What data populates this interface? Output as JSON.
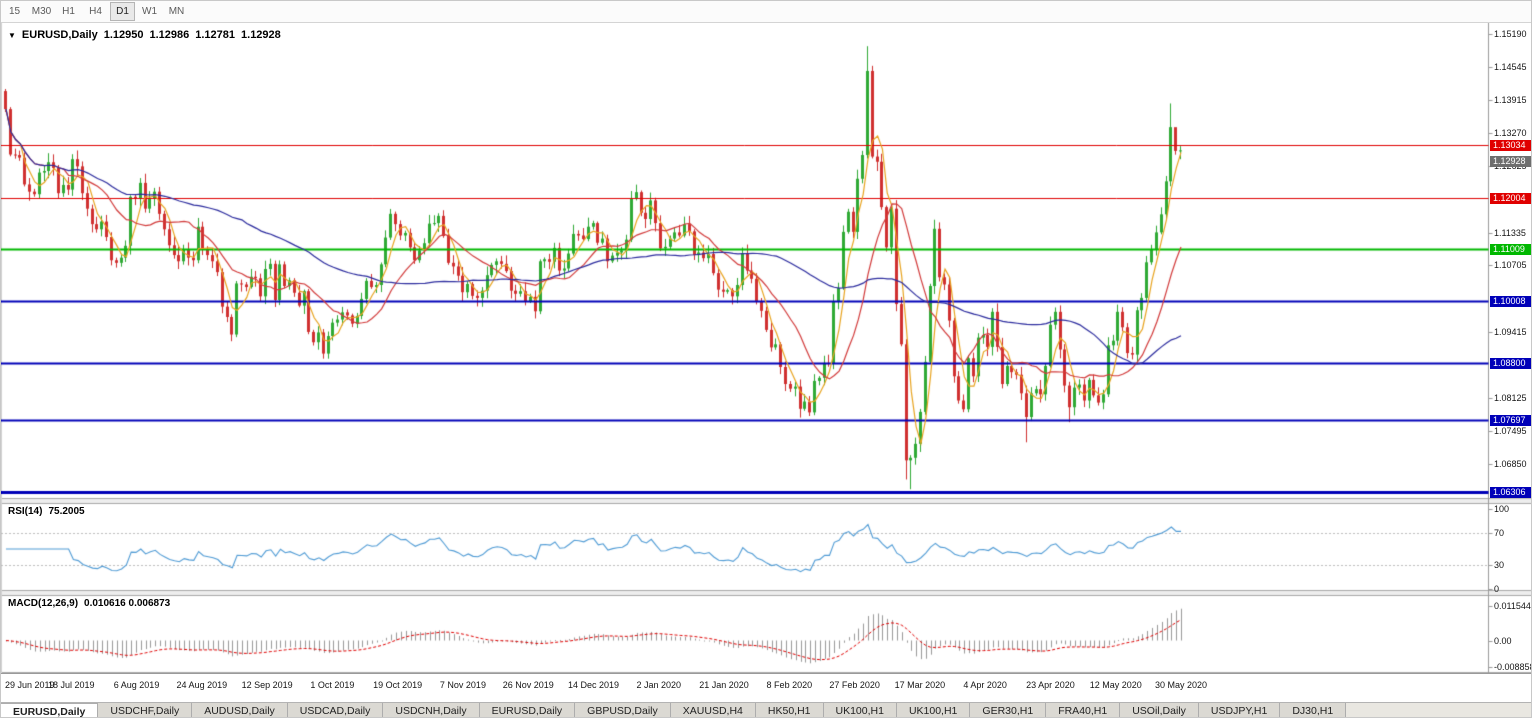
{
  "toolbar": {
    "timeframes": [
      {
        "label": "15",
        "active": false
      },
      {
        "label": "M30",
        "active": false
      },
      {
        "label": "H1",
        "active": false
      },
      {
        "label": "H4",
        "active": false
      },
      {
        "label": "D1",
        "active": true
      },
      {
        "label": "W1",
        "active": false
      },
      {
        "label": "MN",
        "active": false
      }
    ]
  },
  "icons": {
    "dropdown": "▼"
  },
  "chart": {
    "symbol_title": "EURUSD,Daily",
    "quote": {
      "open": "1.12950",
      "high": "1.12986",
      "low": "1.12781",
      "close": "1.12928"
    }
  },
  "chart_data": {
    "type": "candlestick",
    "symbol": "EURUSD",
    "period": "Daily",
    "price_range": {
      "max": 1.154,
      "min": 1.0619
    },
    "first_open": 1.1408,
    "closes": [
      1.1373,
      1.1285,
      1.1284,
      1.1279,
      1.1227,
      1.1213,
      1.1208,
      1.125,
      1.1253,
      1.127,
      1.1259,
      1.121,
      1.1226,
      1.1217,
      1.1276,
      1.1262,
      1.121,
      1.118,
      1.115,
      1.114,
      1.1155,
      1.1125,
      1.108,
      1.1075,
      1.1085,
      1.1108,
      1.1203,
      1.12,
      1.123,
      1.118,
      1.12,
      1.1213,
      1.117,
      1.114,
      1.1109,
      1.109,
      1.1078,
      1.11,
      1.1085,
      1.108,
      1.1145,
      1.1101,
      1.109,
      1.1078,
      1.1057,
      1.099,
      1.097,
      1.0936,
      1.1035,
      1.1033,
      1.1028,
      1.1048,
      1.1045,
      1.101,
      1.1063,
      1.1073,
      1.1003,
      1.1072,
      1.103,
      1.1041,
      1.1017,
      1.0992,
      1.102,
      1.0941,
      1.0921,
      1.094,
      1.0899,
      1.0933,
      1.0959,
      1.0965,
      1.0979,
      1.0973,
      1.0957,
      1.0972,
      1.1005,
      1.104,
      1.1028,
      1.1032,
      1.1072,
      1.1124,
      1.117,
      1.115,
      1.1128,
      1.1133,
      1.1105,
      1.108,
      1.1099,
      1.1113,
      1.1151,
      1.1152,
      1.1166,
      1.1127,
      1.1075,
      1.1068,
      1.105,
      1.1018,
      1.1034,
      1.1011,
      1.1007,
      1.1021,
      1.1051,
      1.1071,
      1.1078,
      1.1073,
      1.1059,
      1.1021,
      1.1015,
      1.102,
      1.1001,
      1.1009,
      1.0981,
      1.1078,
      1.1082,
      1.1077,
      1.1104,
      1.106,
      1.1064,
      1.1093,
      1.1131,
      1.1128,
      1.1121,
      1.1145,
      1.1152,
      1.1114,
      1.1122,
      1.1078,
      1.1089,
      1.1095,
      1.1099,
      1.112,
      1.1199,
      1.1212,
      1.1172,
      1.116,
      1.1196,
      1.1152,
      1.1103,
      1.1106,
      1.1122,
      1.1134,
      1.1128,
      1.115,
      1.1136,
      1.109,
      1.1095,
      1.1084,
      1.1092,
      1.1055,
      1.1023,
      1.1019,
      1.1022,
      1.101,
      1.1032,
      1.1094,
      1.106,
      1.1044,
      1.1,
      1.0982,
      1.0945,
      1.0911,
      1.0917,
      1.0873,
      1.084,
      1.0831,
      1.0835,
      1.0792,
      1.0806,
      1.0785,
      1.0846,
      1.0852,
      1.0881,
      1.088,
      1.0999,
      1.1026,
      1.1135,
      1.1174,
      1.1135,
      1.1238,
      1.1284,
      1.1447,
      1.1281,
      1.1271,
      1.1183,
      1.1105,
      1.118,
      1.0995,
      1.0917,
      1.0692,
      1.0697,
      1.0724,
      1.0786,
      1.0883,
      1.103,
      1.1141,
      1.1047,
      1.1033,
      1.0963,
      1.0855,
      1.0808,
      1.0791,
      1.089,
      1.0855,
      1.093,
      1.0935,
      1.0912,
      1.098,
      1.0912,
      1.084,
      1.0875,
      1.0863,
      1.0858,
      1.0822,
      1.0776,
      1.0822,
      1.083,
      1.082,
      1.0875,
      1.0955,
      1.098,
      1.0907,
      1.0837,
      1.0795,
      1.0833,
      1.0839,
      1.0808,
      1.0848,
      1.0818,
      1.0804,
      1.082,
      1.0915,
      1.0924,
      1.098,
      1.095,
      1.09,
      1.0897,
      1.0983,
      1.1007,
      1.1076,
      1.1101,
      1.1134,
      1.1169,
      1.1233,
      1.1338,
      1.1292,
      1.1293
    ],
    "wick_overrides": {
      "0": {
        "h": 1.1412
      },
      "167": {
        "l": 1.0778
      },
      "179": {
        "h": 1.1495
      },
      "187": {
        "l": 1.0655
      },
      "188": {
        "l": 1.0636
      },
      "212": {
        "l": 1.0727
      },
      "221": {
        "l": 1.0766
      },
      "242": {
        "h": 1.1384
      },
      "243": {
        "h": 1.1316
      }
    },
    "colors": {
      "bull": "#2faa35",
      "bear": "#d03030",
      "rsi": "#4f9bd5",
      "macd_hist": "#999999",
      "macd_signal": "#e00000",
      "ma_fast": "#e8a420",
      "ma_mid": "#d23a3a",
      "ma_slow": "#2b2b9e",
      "hline_red": "#e00000",
      "hline_green": "#00b800",
      "hline_blue": "#0000b8",
      "current_badge": "#6e6e6e"
    },
    "price_axis_ticks": [
      "1.15190",
      "1.14545",
      "1.13915",
      "1.13270",
      "1.12625",
      "1.11335",
      "1.10705",
      "1.09415",
      "1.08125",
      "1.07495",
      "1.06850"
    ],
    "hlines": [
      {
        "label": "1.13034",
        "value": 1.13034,
        "color_key": "hline_red",
        "width": 1
      },
      {
        "label": "1.12004",
        "value": 1.12004,
        "color_key": "hline_red",
        "width": 1
      },
      {
        "label": "1.11009",
        "value": 1.11009,
        "color_key": "hline_green",
        "width": 2
      },
      {
        "label": "1.10008",
        "value": 1.10008,
        "color_key": "hline_blue",
        "width": 2
      },
      {
        "label": "1.08800",
        "value": 1.088,
        "color_key": "hline_blue",
        "width": 2
      },
      {
        "label": "1.07697",
        "value": 1.07697,
        "color_key": "hline_blue",
        "width": 2
      },
      {
        "label": "1.06306",
        "value": 1.06306,
        "color_key": "hline_blue",
        "width": 3
      }
    ],
    "current_price": {
      "label": "1.12928",
      "value": 1.12928
    },
    "date_labels": [
      "29 Jun 2019",
      "18 Jul 2019",
      "6 Aug 2019",
      "24 Aug 2019",
      "12 Sep 2019",
      "1 Oct 2019",
      "19 Oct 2019",
      "7 Nov 2019",
      "26 Nov 2019",
      "14 Dec 2019",
      "2 Jan 2020",
      "21 Jan 2020",
      "8 Feb 2020",
      "27 Feb 2020",
      "17 Mar 2020",
      "4 Apr 2020",
      "23 Apr 2020",
      "12 May 2020",
      "30 May 2020"
    ],
    "moving_averages": [
      {
        "period": 4,
        "color_key": "ma_fast"
      },
      {
        "period": 13,
        "color_key": "ma_mid"
      },
      {
        "period": 50,
        "color_key": "ma_slow"
      }
    ],
    "rsi": {
      "label": "RSI(14)",
      "period": 14,
      "value_display": "75.2005",
      "levels": [
        70,
        30
      ],
      "axis_ticks": [
        "100",
        "70",
        "30",
        "0"
      ],
      "range": {
        "max": 100,
        "min": 0
      }
    },
    "macd": {
      "label": "MACD(12,26,9)",
      "fast": 12,
      "slow": 26,
      "signal": 9,
      "value_display": "0.010616 0.006873",
      "axis_ticks": [
        "0.011544",
        "0.00",
        "-0.008858"
      ],
      "range": {
        "max": 0.0135,
        "min": -0.0095
      }
    }
  },
  "tabs": [
    {
      "label": "EURUSD,Daily",
      "active": true
    },
    {
      "label": "USDCHF,Daily",
      "active": false
    },
    {
      "label": "AUDUSD,Daily",
      "active": false
    },
    {
      "label": "USDCAD,Daily",
      "active": false
    },
    {
      "label": "USDCNH,Daily",
      "active": false
    },
    {
      "label": "EURUSD,Daily",
      "active": false
    },
    {
      "label": "GBPUSD,Daily",
      "active": false
    },
    {
      "label": "XAUUSD,H4",
      "active": false
    },
    {
      "label": "HK50,H1",
      "active": false
    },
    {
      "label": "UK100,H1",
      "active": false
    },
    {
      "label": "UK100,H1",
      "active": false
    },
    {
      "label": "GER30,H1",
      "active": false
    },
    {
      "label": "FRA40,H1",
      "active": false
    },
    {
      "label": "USOil,Daily",
      "active": false
    },
    {
      "label": "USDJPY,H1",
      "active": false
    },
    {
      "label": "DJ30,H1",
      "active": false
    }
  ]
}
